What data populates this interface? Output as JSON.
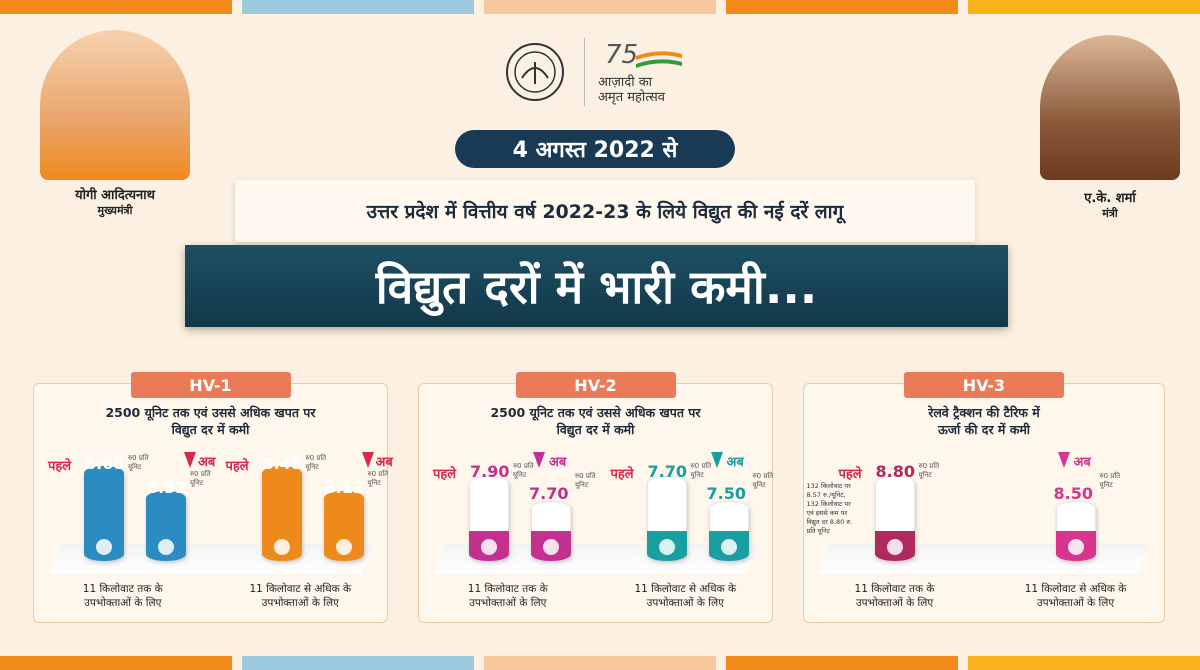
{
  "header": {
    "left_person": {
      "name": "योगी आदित्यनाथ",
      "role": "मुख्यमंत्री"
    },
    "right_person": {
      "name": "ए.के. शर्मा",
      "role": "मंत्री"
    },
    "logo": {
      "number": "75",
      "line1": "आज़ादी का",
      "line2": "अमृत महोत्सव"
    },
    "date": "4 अगस्त 2022 से",
    "subtitle": "उत्तर प्रदेश में वित्तीय वर्ष 2022-23 के लिये विद्युत की नई दरें लागू",
    "title": "विद्युत दरों में भारी कमी..."
  },
  "panels": [
    {
      "label": "HV-1",
      "heading": [
        "2500 यूनिट तक एवं उससे अधिक खपत पर",
        "विद्युत दर में कमी"
      ],
      "groups": [
        {
          "color": "#2a8cc0",
          "before_label": "पहले",
          "before": "8.68",
          "before_unit": "रु0 प्रति यूनिट",
          "after_label": "अब",
          "after": "8.32",
          "after_unit": "रु0 प्रति यूनिट",
          "caption": [
            "11 किलोवाट तक के",
            "उपभोक्ताओं के लिए"
          ]
        },
        {
          "color": "#ee8a1c",
          "before_label": "पहले",
          "before": "8.48",
          "before_unit": "रु0 प्रति यूनिट",
          "after_label": "अब",
          "after": "8.12",
          "after_unit": "रु0 प्रति यूनिट",
          "caption": [
            "11 किलोवाट से अधिक के",
            "उपभोक्ताओं के लिए"
          ]
        }
      ]
    },
    {
      "label": "HV-2",
      "heading": [
        "2500 यूनिट तक एवं उससे अधिक खपत पर",
        "विद्युत दर में कमी"
      ],
      "groups": [
        {
          "color": "#c4308f",
          "before_label": "पहले",
          "before": "7.90",
          "before_unit": "रु0 प्रति यूनिट",
          "after_label": "अब",
          "after": "7.70",
          "after_unit": "रु0 प्रति यूनिट",
          "caption": [
            "11 किलोवाट तक के",
            "उपभोक्ताओं के लिए"
          ]
        },
        {
          "color": "#189fa2",
          "before_label": "पहले",
          "before": "7.70",
          "before_unit": "रु0 प्रति यूनिट",
          "after_label": "अब",
          "after": "7.50",
          "after_unit": "रु0 प्रति यूनिट",
          "caption": [
            "11 किलोवाट से अधिक के",
            "उपभोक्ताओं के लिए"
          ]
        }
      ]
    },
    {
      "label": "HV-3",
      "heading": [
        "रेलवे ट्रैक्शन की टैरिफ में",
        "ऊर्जा की दर में कमी"
      ],
      "groups": [
        {
          "color": "#b02a60",
          "before_label": "पहले",
          "before": "8.80",
          "before_unit": "रु0 प्रति यूनिट",
          "note": [
            "132 किलोवाट पर",
            "8.57 रु./यूनिट,",
            "132 किलोवाट पर",
            "एवं इससे कम पर",
            "विद्युत दर 8.80 रु.",
            "प्रति यूनिट"
          ],
          "caption": [
            "11 किलोवाट तक के",
            "उपभोक्ताओं के लिए"
          ]
        },
        {
          "color": "#d8358f",
          "after_label": "अब",
          "after": "8.50",
          "after_unit": "रु0 प्रति यूनिट",
          "caption": [
            "11 किलोवाट से अधिक के",
            "उपभोक्ताओं के लिए"
          ]
        }
      ]
    }
  ]
}
